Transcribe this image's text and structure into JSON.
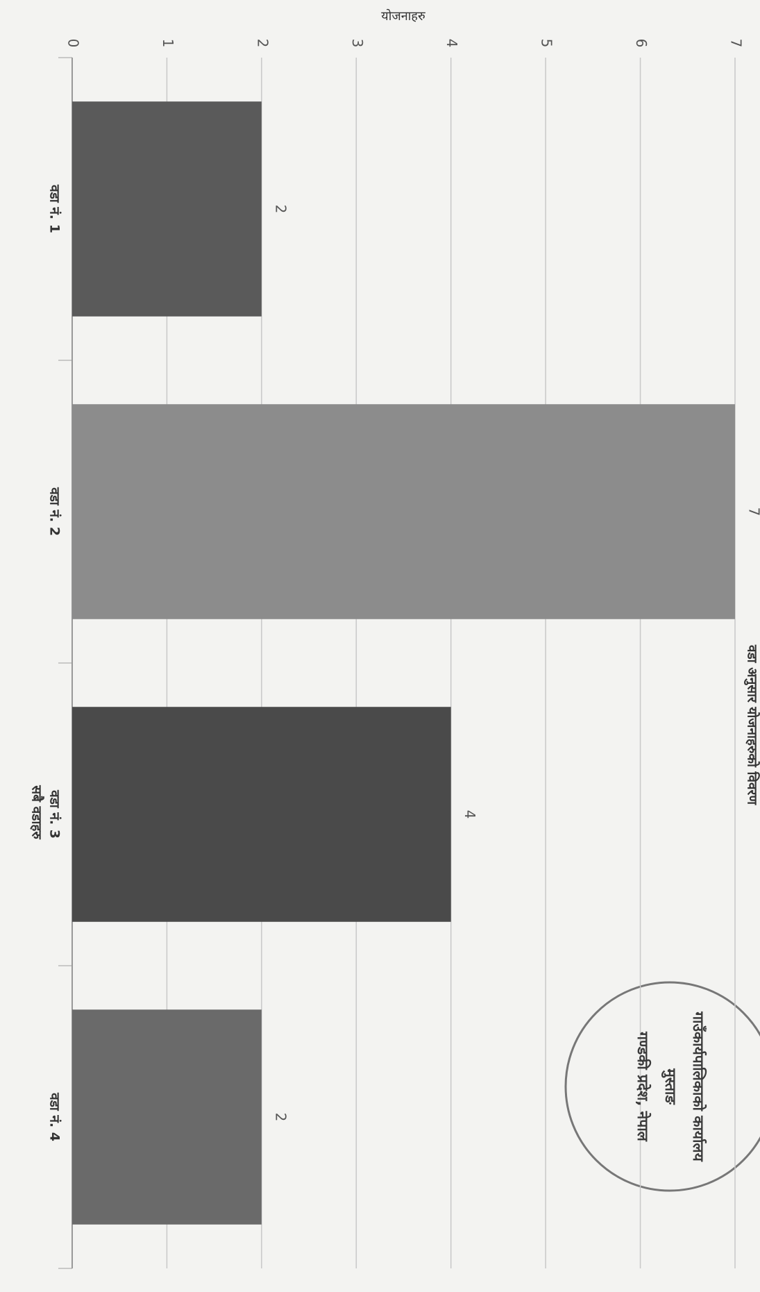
{
  "chart_data": {
    "type": "bar",
    "orientation": "horizontal",
    "title": "वडा अनुसार योजनाहरुको विवरण",
    "x_label": "सबै वडाहरु",
    "y_label": "योजनाहरु",
    "categories": [
      "वडा नं. 1",
      "वडा नं. 2",
      "वडा नं. 3",
      "वडा नं. 4"
    ],
    "values": [
      2,
      7,
      4,
      2
    ],
    "colors": [
      "#5a5a5a",
      "#8c8c8c",
      "#4a4a4a",
      "#6a6a6a"
    ],
    "ylim": [
      0,
      7
    ],
    "yticks": [
      0,
      1,
      2,
      3,
      4,
      5,
      6,
      7
    ],
    "grid": true,
    "data_labels": true
  },
  "stamp": {
    "lines": [
      "गाउँकार्यपालिकाको कार्यालय",
      "मुस्ताङ",
      "गण्डकी प्रदेश, नेपाल"
    ]
  }
}
